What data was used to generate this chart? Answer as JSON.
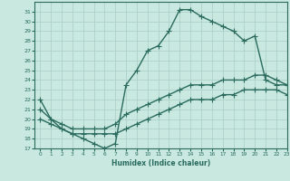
{
  "line1_x": [
    0,
    1,
    2,
    3,
    4,
    5,
    6,
    7,
    8,
    9,
    10,
    11,
    12,
    13,
    14,
    15,
    16,
    17,
    18,
    19,
    20,
    21,
    22,
    23
  ],
  "line1_y": [
    22,
    20,
    19,
    18.5,
    18,
    17.5,
    17,
    17.5,
    23.5,
    25,
    27,
    27.5,
    29,
    31.2,
    31.2,
    30.5,
    30,
    29.5,
    29,
    28,
    28.5,
    24,
    23.5,
    23.5
  ],
  "line2_x": [
    0,
    1,
    2,
    3,
    4,
    5,
    6,
    7,
    8,
    9,
    10,
    11,
    12,
    13,
    14,
    15,
    16,
    17,
    18,
    19,
    20,
    21,
    22,
    23
  ],
  "line2_y": [
    21,
    20.0,
    19.5,
    19.0,
    19.0,
    19.0,
    19.0,
    19.5,
    20.5,
    21.0,
    21.5,
    22.0,
    22.5,
    23.0,
    23.5,
    23.5,
    23.5,
    24.0,
    24.0,
    24.0,
    24.5,
    24.5,
    24.0,
    23.5
  ],
  "line3_x": [
    0,
    1,
    2,
    3,
    4,
    5,
    6,
    7,
    8,
    9,
    10,
    11,
    12,
    13,
    14,
    15,
    16,
    17,
    18,
    19,
    20,
    21,
    22,
    23
  ],
  "line3_y": [
    20.0,
    19.5,
    19.0,
    18.5,
    18.5,
    18.5,
    18.5,
    18.5,
    19.0,
    19.5,
    20.0,
    20.5,
    21.0,
    21.5,
    22.0,
    22.0,
    22.0,
    22.5,
    22.5,
    23.0,
    23.0,
    23.0,
    23.0,
    22.5
  ],
  "line_color": "#2a6b5e",
  "bg_color": "#c8e8e0",
  "grid_color": "#a8ccc6",
  "xlabel": "Humidex (Indice chaleur)",
  "ylim": [
    17,
    32
  ],
  "xlim": [
    -0.5,
    23
  ],
  "yticks": [
    17,
    18,
    19,
    20,
    21,
    22,
    23,
    24,
    25,
    26,
    27,
    28,
    29,
    30,
    31
  ],
  "xticks": [
    0,
    1,
    2,
    3,
    4,
    5,
    6,
    7,
    8,
    9,
    10,
    11,
    12,
    13,
    14,
    15,
    16,
    17,
    18,
    19,
    20,
    21,
    22,
    23
  ],
  "marker": "+",
  "markersize": 4,
  "linewidth": 1.0
}
